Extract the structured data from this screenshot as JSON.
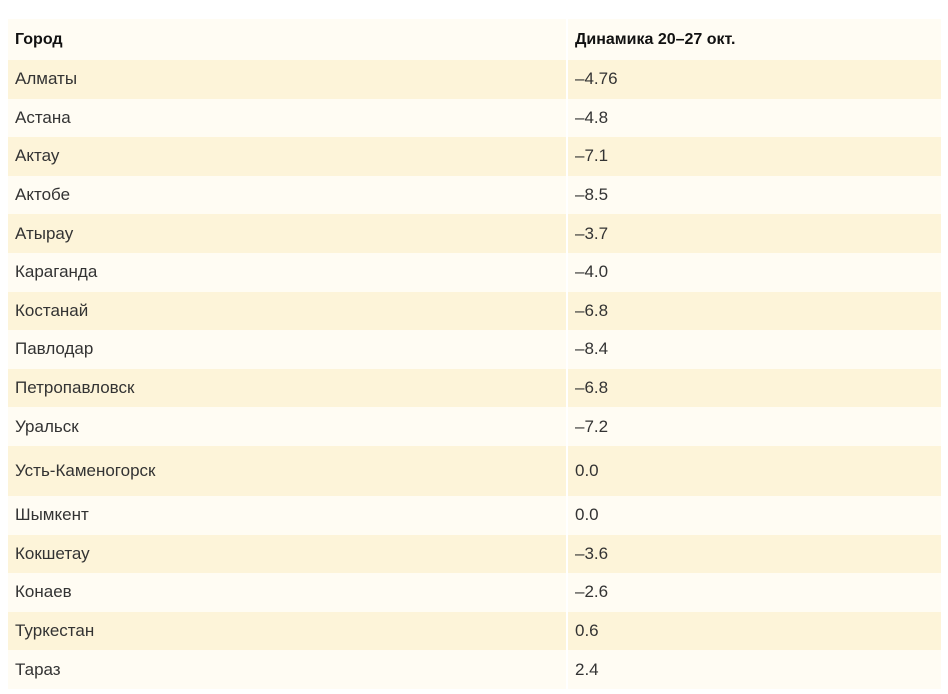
{
  "table": {
    "headers": [
      "Город",
      "Динамика 20–27 окт."
    ],
    "rows": [
      {
        "city": "Алматы",
        "change": "–4.76"
      },
      {
        "city": "Астана",
        "change": "–4.8"
      },
      {
        "city": "Актау",
        "change": "–7.1"
      },
      {
        "city": "Актобе",
        "change": "–8.5"
      },
      {
        "city": "Атырау",
        "change": "–3.7"
      },
      {
        "city": "Караганда",
        "change": "–4.0"
      },
      {
        "city": "Костанай",
        "change": "–6.8"
      },
      {
        "city": "Павлодар",
        "change": "–8.4"
      },
      {
        "city": "Петропавловск",
        "change": "–6.8"
      },
      {
        "city": "Уральск",
        "change": "–7.2"
      },
      {
        "city": "Усть-Каменогорск",
        "change": "0.0"
      },
      {
        "city": "Шымкент",
        "change": "0.0"
      },
      {
        "city": "Кокшетау",
        "change": "–3.6"
      },
      {
        "city": "Конаев",
        "change": "–2.6"
      },
      {
        "city": "Туркестан",
        "change": "0.6"
      },
      {
        "city": "Тараз",
        "change": "2.4"
      }
    ]
  },
  "colors": {
    "row_odd": "#fdf4d9",
    "row_even": "#fffcf3",
    "text": "#333333"
  }
}
